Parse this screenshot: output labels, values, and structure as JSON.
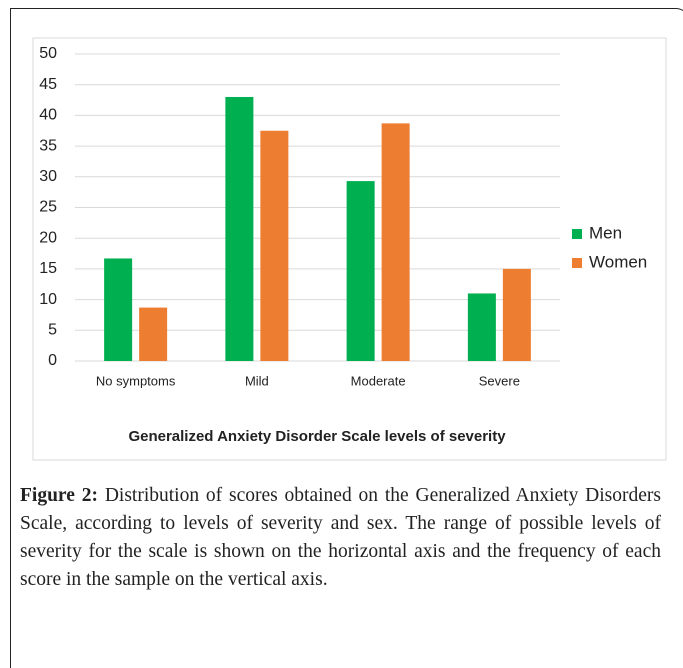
{
  "chart_data": {
    "type": "bar",
    "x_label": "Generalized Anxiety Disorder Scale levels of severity",
    "categories": [
      "No symptoms",
      "Mild",
      "Moderate",
      "Severe"
    ],
    "series": [
      {
        "name": "Men",
        "color": "#00b050",
        "values": [
          16.7,
          43,
          29.3,
          11
        ]
      },
      {
        "name": "Women",
        "color": "#ed7d31",
        "values": [
          8.7,
          37.5,
          38.7,
          15
        ]
      }
    ],
    "ylim": [
      0,
      50
    ],
    "yticks": [
      0,
      5,
      10,
      15,
      20,
      25,
      30,
      35,
      40,
      45,
      50
    ],
    "grid": true,
    "legend": "right"
  },
  "caption": {
    "label": "Figure 2:",
    "text": "Distribution of scores obtained on the Generalized Anxiety Disorders Scale, according to levels of severity and sex. The range of possible levels of severity for the scale is shown on the horizontal axis and the frequency of each score in the sample on the vertical axis."
  }
}
